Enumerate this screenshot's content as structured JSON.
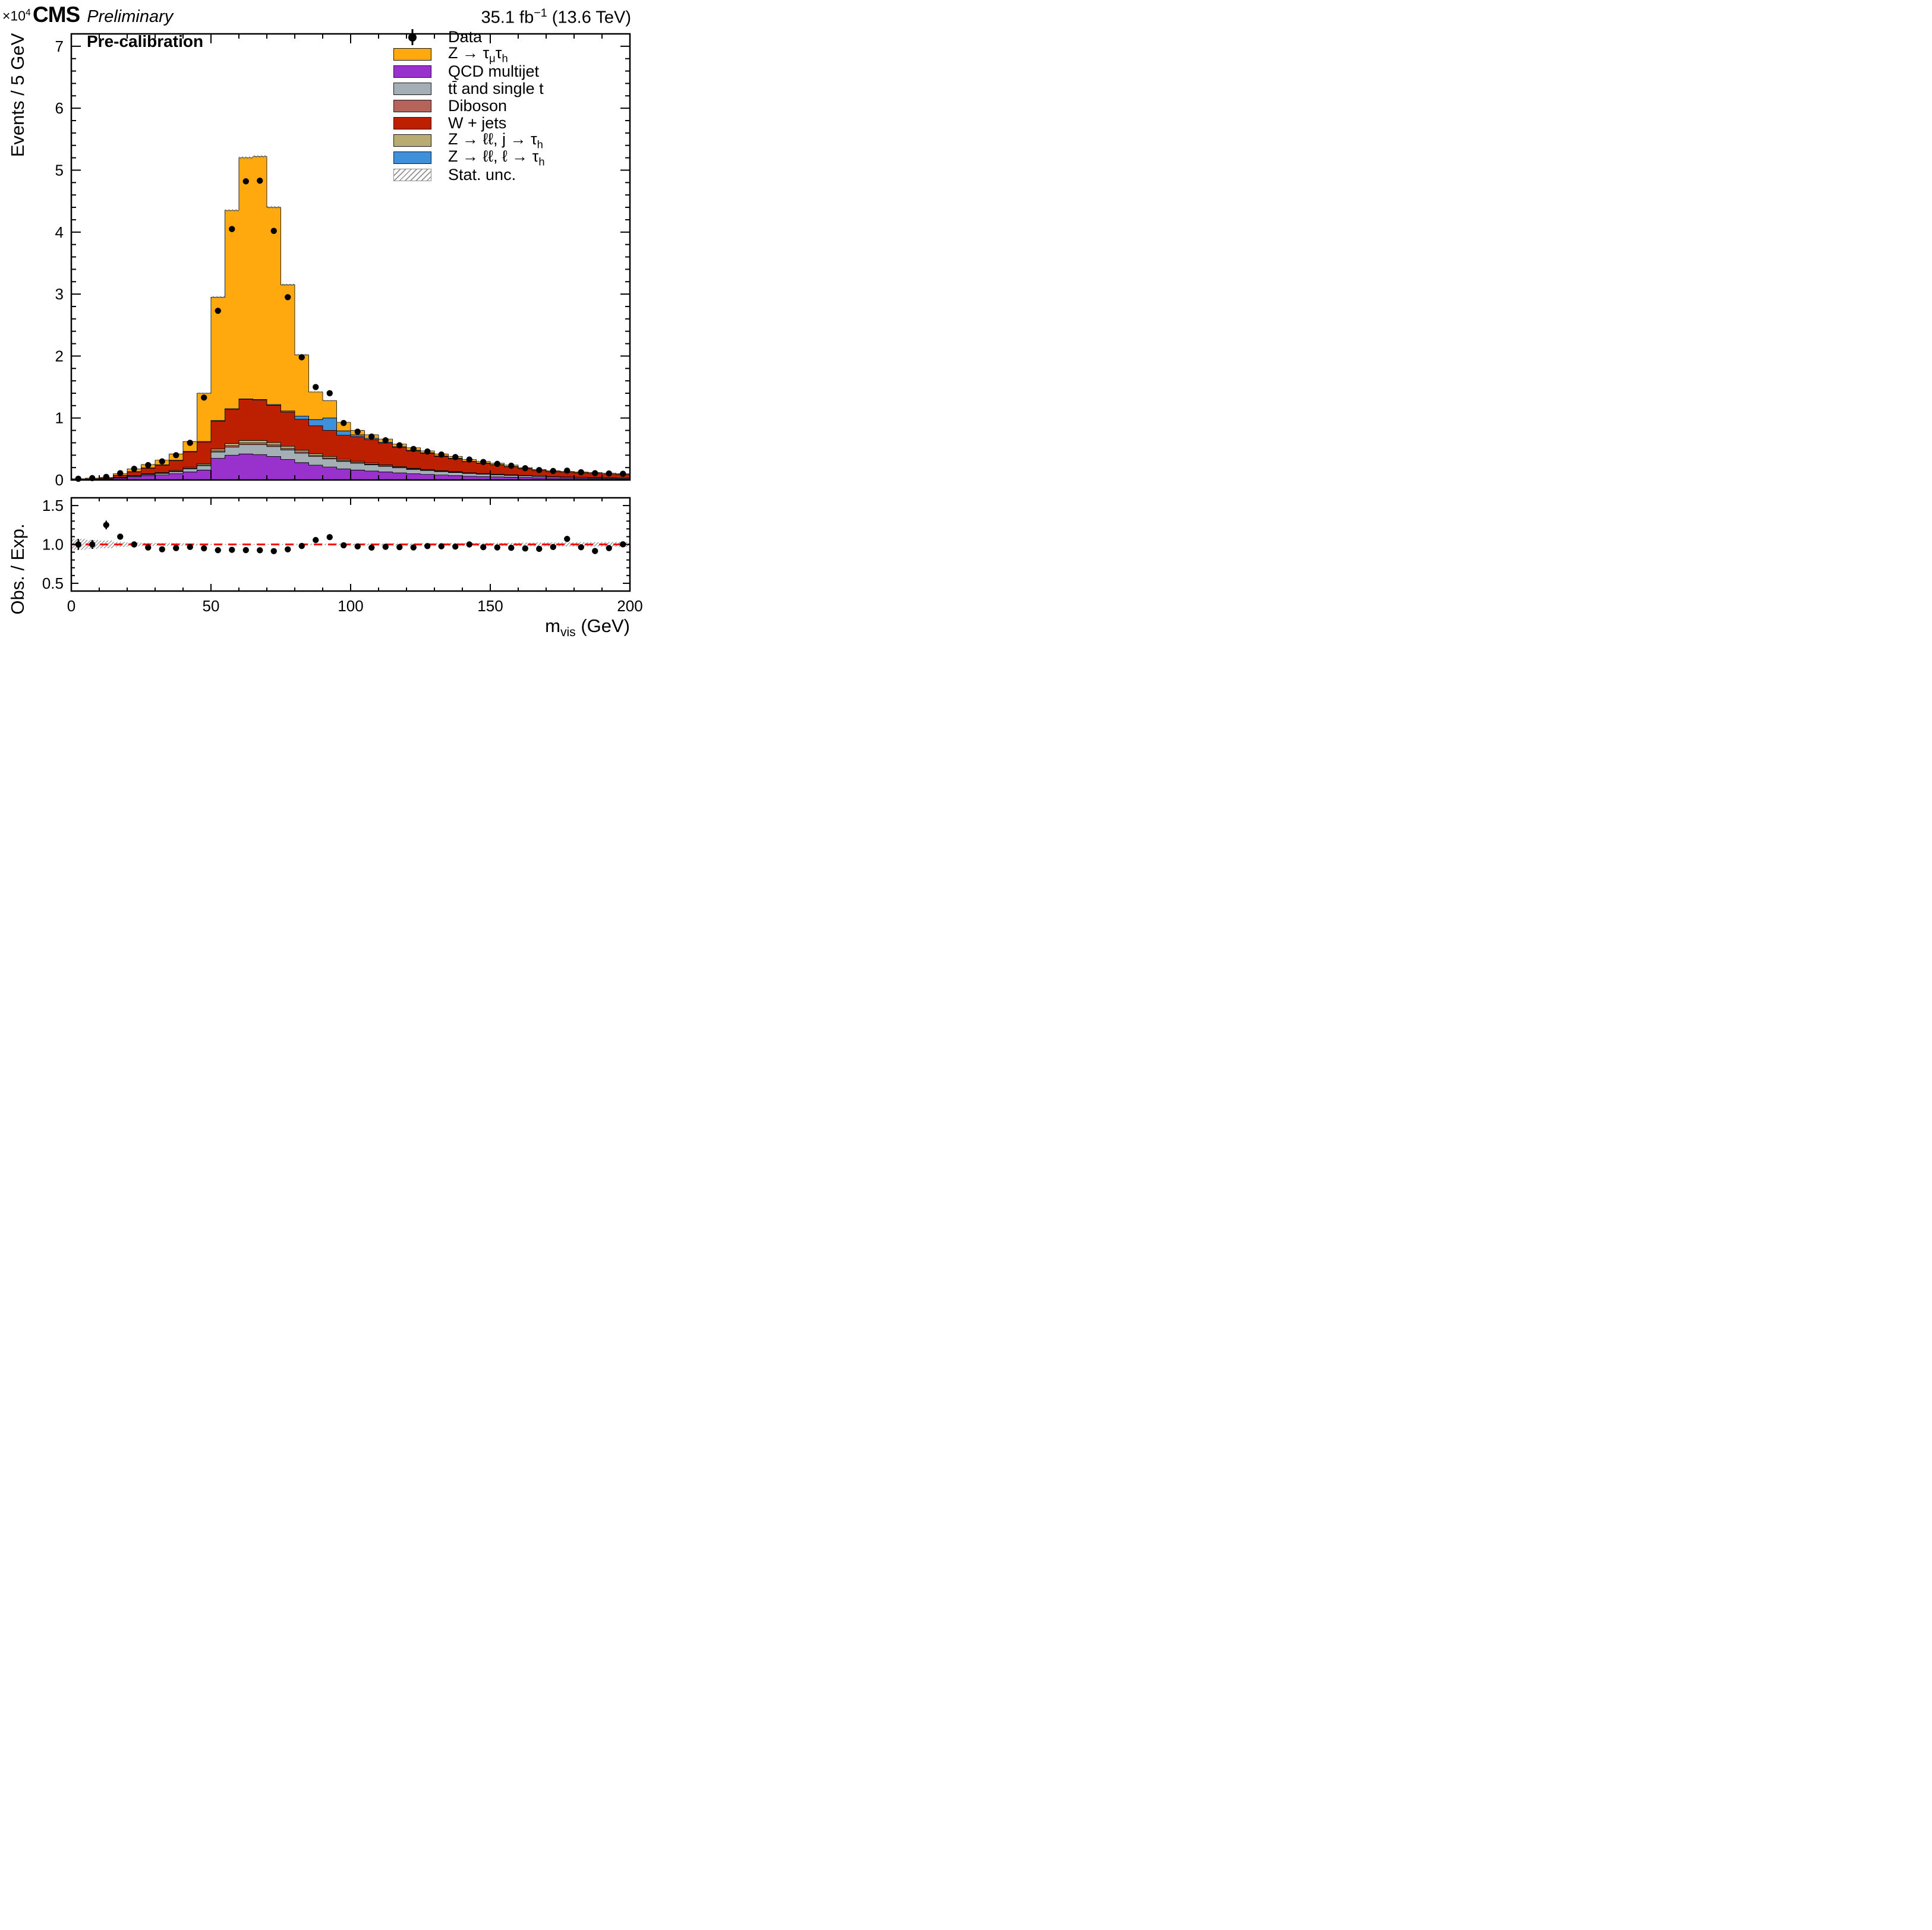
{
  "header": {
    "experiment": "CMS",
    "label": "Preliminary",
    "lumi_html": "35.1 fb<sup>−1</sup> (13.6 TeV)"
  },
  "plot_label": "Pre-calibration",
  "axes": {
    "y_title": "Events / 5 GeV",
    "y_multiplier_html": "×10<sup>4</sup>",
    "x_title_html": "m<sub>vis</sub> (GeV)",
    "ratio_y_title": "Obs. / Exp."
  },
  "legend": [
    {
      "id": "data",
      "type": "data",
      "label_html": "Data"
    },
    {
      "id": "ztautau",
      "type": "box",
      "color": "#ffa90e",
      "label_html": "Z → τ<sub>μ</sub>τ<sub>h</sub>"
    },
    {
      "id": "qcd",
      "type": "box",
      "color": "#9932cc",
      "label_html": "QCD multijet"
    },
    {
      "id": "ttbar",
      "type": "box",
      "color": "#a3aeb5",
      "label_html": "tt̄ and single t"
    },
    {
      "id": "diboson",
      "type": "box",
      "color": "#b5645c",
      "label_html": "Diboson"
    },
    {
      "id": "wjets",
      "type": "box",
      "color": "#bd1f01",
      "label_html": "W + jets"
    },
    {
      "id": "zll-jet",
      "type": "box",
      "color": "#b9ac70",
      "label_html": "Z → ℓℓ, j → τ<sub>h</sub>"
    },
    {
      "id": "zll-lep",
      "type": "box",
      "color": "#3f90da",
      "label_html": "Z → ℓℓ, ℓ → τ<sub>h</sub>"
    },
    {
      "id": "stat-unc",
      "type": "hatch",
      "label_html": "Stat. unc."
    }
  ],
  "chart_data": {
    "type": "bar",
    "subtype": "stacked-histogram-with-ratio",
    "title": "CMS Preliminary, 35.1 fb^-1 (13.6 TeV), Pre-calibration",
    "xlabel": "m_vis (GeV)",
    "ylabel": "Events / 5 GeV",
    "units": "values in 10^4 events per 5 GeV bin",
    "x_range": [
      0,
      200
    ],
    "bin_width": 5,
    "ylim": [
      0,
      7.2
    ],
    "y_scale_exponent": 4,
    "y_ticks": [
      0,
      1,
      2,
      3,
      4,
      5,
      6,
      7
    ],
    "x_ticks": [
      0,
      50,
      100,
      150,
      200
    ],
    "x_minor_step": 10,
    "y_minor_step": 0.2,
    "grid": false,
    "legend_position": "top-right",
    "series": [
      {
        "id": "qcd",
        "name": "QCD multijet",
        "color": "#9932cc",
        "values": [
          0.003,
          0.006,
          0.01,
          0.03,
          0.05,
          0.07,
          0.08,
          0.1,
          0.13,
          0.16,
          0.35,
          0.4,
          0.42,
          0.41,
          0.38,
          0.33,
          0.28,
          0.24,
          0.21,
          0.18,
          0.16,
          0.145,
          0.13,
          0.115,
          0.1,
          0.09,
          0.08,
          0.07,
          0.06,
          0.055,
          0.05,
          0.045,
          0.04,
          0.034,
          0.03,
          0.027,
          0.025,
          0.022,
          0.02,
          0.018
        ]
      },
      {
        "id": "ttbar",
        "name": "tt̄ and single t",
        "color": "#a3aeb5",
        "values": [
          0.001,
          0.002,
          0.003,
          0.008,
          0.012,
          0.018,
          0.025,
          0.035,
          0.05,
          0.07,
          0.1,
          0.13,
          0.15,
          0.16,
          0.16,
          0.155,
          0.15,
          0.14,
          0.13,
          0.12,
          0.11,
          0.1,
          0.09,
          0.08,
          0.07,
          0.063,
          0.056,
          0.05,
          0.044,
          0.039,
          0.034,
          0.03,
          0.026,
          0.022,
          0.019,
          0.017,
          0.015,
          0.013,
          0.011,
          0.01
        ]
      },
      {
        "id": "diboson",
        "name": "Diboson",
        "color": "#b5645c",
        "values": [
          0.0005,
          0.001,
          0.001,
          0.002,
          0.003,
          0.004,
          0.005,
          0.006,
          0.008,
          0.012,
          0.02,
          0.025,
          0.028,
          0.028,
          0.026,
          0.024,
          0.02,
          0.017,
          0.015,
          0.013,
          0.012,
          0.011,
          0.01,
          0.009,
          0.008,
          0.007,
          0.006,
          0.0055,
          0.005,
          0.0045,
          0.004,
          0.0035,
          0.003,
          0.0027,
          0.0024,
          0.0021,
          0.0019,
          0.0017,
          0.0015,
          0.0014
        ]
      },
      {
        "id": "zll-jet",
        "name": "Z → ll, j → tau_h",
        "color": "#b9ac70",
        "values": [
          0.0005,
          0.001,
          0.002,
          0.004,
          0.006,
          0.008,
          0.01,
          0.012,
          0.015,
          0.02,
          0.03,
          0.035,
          0.04,
          0.04,
          0.038,
          0.035,
          0.03,
          0.028,
          0.025,
          0.02,
          0.018,
          0.016,
          0.014,
          0.012,
          0.011,
          0.01,
          0.009,
          0.008,
          0.007,
          0.006,
          0.0055,
          0.005,
          0.0045,
          0.004,
          0.0035,
          0.003,
          0.0028,
          0.0025,
          0.0022,
          0.002
        ]
      },
      {
        "id": "wjets",
        "name": "W + jets",
        "color": "#bd1f01",
        "values": [
          0.005,
          0.008,
          0.012,
          0.03,
          0.06,
          0.09,
          0.12,
          0.16,
          0.25,
          0.35,
          0.45,
          0.55,
          0.66,
          0.65,
          0.6,
          0.55,
          0.5,
          0.45,
          0.42,
          0.39,
          0.4,
          0.38,
          0.35,
          0.31,
          0.28,
          0.26,
          0.23,
          0.21,
          0.18,
          0.165,
          0.15,
          0.13,
          0.11,
          0.09,
          0.08,
          0.075,
          0.07,
          0.065,
          0.06,
          0.055
        ]
      },
      {
        "id": "zll-lep",
        "name": "Z → ll, l → tau_h",
        "color": "#3f90da",
        "values": [
          0.001,
          0.001,
          0.002,
          0.003,
          0.004,
          0.005,
          0.005,
          0.006,
          0.008,
          0.01,
          0.01,
          0.01,
          0.01,
          0.012,
          0.015,
          0.02,
          0.05,
          0.1,
          0.2,
          0.07,
          0.03,
          0.02,
          0.015,
          0.012,
          0.01,
          0.008,
          0.007,
          0.006,
          0.005,
          0.005,
          0.004,
          0.004,
          0.003,
          0.003,
          0.002,
          0.002,
          0.002,
          0.002,
          0.0015,
          0.0015
        ]
      },
      {
        "id": "ztautau",
        "name": "Z → tau_mu tau_h",
        "color": "#ffa90e",
        "values": [
          0.009,
          0.011,
          0.01,
          0.023,
          0.045,
          0.055,
          0.075,
          0.101,
          0.159,
          0.778,
          1.99,
          3.2,
          3.892,
          3.92,
          3.181,
          2.036,
          0.99,
          0.445,
          0.28,
          0.137,
          0.07,
          0.058,
          0.051,
          0.042,
          0.041,
          0.032,
          0.032,
          0.031,
          0.029,
          0.026,
          0.023,
          0.023,
          0.014,
          0.014,
          0.013,
          0.014,
          0.013,
          0.014,
          0.014,
          0.012
        ]
      }
    ],
    "data_points": {
      "name": "Data",
      "marker": "filled-circle",
      "color": "#000000",
      "values": [
        0.02,
        0.03,
        0.05,
        0.11,
        0.18,
        0.24,
        0.3,
        0.4,
        0.6,
        1.33,
        2.73,
        4.05,
        4.82,
        4.83,
        4.02,
        2.95,
        1.98,
        1.5,
        1.4,
        0.92,
        0.78,
        0.7,
        0.64,
        0.56,
        0.5,
        0.46,
        0.41,
        0.37,
        0.33,
        0.29,
        0.26,
        0.23,
        0.19,
        0.16,
        0.145,
        0.15,
        0.125,
        0.11,
        0.105,
        0.1
      ]
    },
    "ratio": {
      "ylabel": "Obs. / Exp.",
      "ylim": [
        0.4,
        1.6
      ],
      "ticks": [
        0.5,
        1.0,
        1.5
      ],
      "minor_step": 0.1,
      "refline": 1.0,
      "refline_color": "#ff0000",
      "definition": "data_points / sum(series)"
    }
  }
}
